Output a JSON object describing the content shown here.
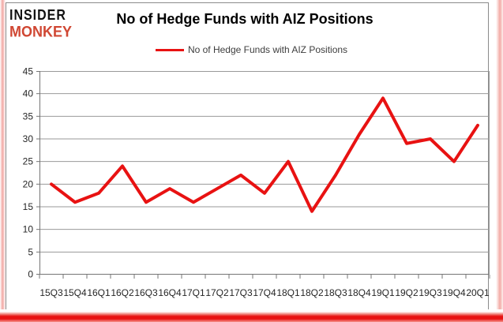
{
  "header": {
    "logo_line1": "INSIDER",
    "logo_line2": "MONKEY",
    "title": "No of Hedge Funds with AIZ Positions"
  },
  "legend": {
    "label": "No of Hedge Funds with AIZ Positions"
  },
  "chart_data": {
    "type": "line",
    "title": "No of Hedge Funds with AIZ Positions",
    "categories": [
      "15Q3",
      "15Q4",
      "16Q1",
      "16Q2",
      "16Q3",
      "16Q4",
      "17Q1",
      "17Q2",
      "17Q3",
      "17Q4",
      "18Q1",
      "18Q2",
      "18Q3",
      "18Q4",
      "19Q1",
      "19Q2",
      "19Q3",
      "19Q4",
      "20Q1"
    ],
    "series": [
      {
        "name": "No of Hedge Funds with AIZ Positions",
        "values": [
          20,
          16,
          18,
          24,
          16,
          19,
          16,
          19,
          22,
          18,
          25,
          14,
          22,
          31,
          39,
          29,
          30,
          25,
          33
        ]
      }
    ],
    "xlabel": "",
    "ylabel": "",
    "ylim": [
      0,
      45
    ],
    "ytick_step": 5,
    "grid": true,
    "legend_position": "top-center"
  },
  "colors": {
    "line": "#e81212",
    "logo_red": "#d04733",
    "logo_black": "#111111",
    "grid": "#999999",
    "axis": "#757575",
    "frame_border": "#8b8b8b",
    "border_pink": "#f3a9a4",
    "bottom_bar_red": "#e81212",
    "tick_label": "#262626",
    "title_text": "#000000",
    "legend_text": "#3d3d3d",
    "background": "#ffffff"
  }
}
